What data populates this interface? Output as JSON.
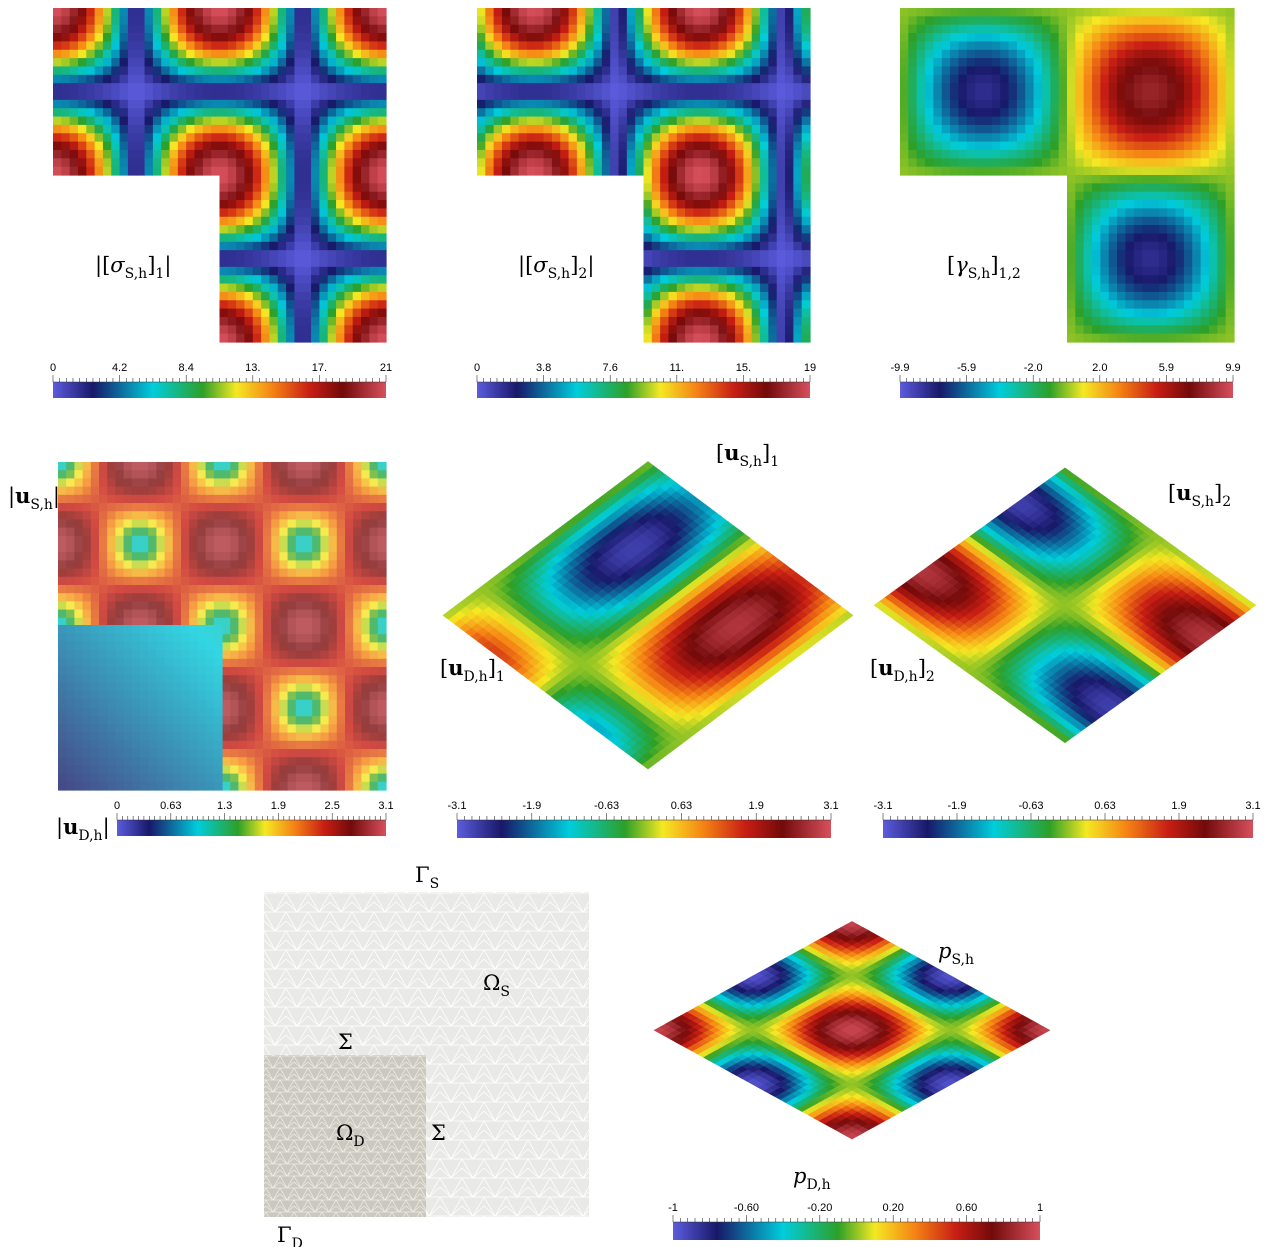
{
  "panels": [
    {
      "labels": [
        [
          {
            "text": "|[",
            "italic": "σ"
          },
          {
            "sub": "S,h"
          },
          {
            "text": "]"
          },
          {
            "sub": "1"
          },
          {
            "text": "|"
          }
        ]
      ],
      "colorbar": {
        "ticks": [
          "0",
          "4.2",
          "8.4",
          "13.",
          "17.",
          "21"
        ]
      }
    },
    {
      "labels": [
        [
          {
            "text": "|[",
            "italic": "σ"
          },
          {
            "sub": "S,h"
          },
          {
            "text": "]"
          },
          {
            "sub": "2"
          },
          {
            "text": "|"
          }
        ]
      ],
      "colorbar": {
        "ticks": [
          "0",
          "3.8",
          "7.6",
          "11.",
          "15.",
          "19"
        ]
      }
    },
    {
      "labels": [
        [
          {
            "text": "[",
            "italic": "γ"
          },
          {
            "sub": "S,h"
          },
          {
            "text": "]"
          },
          {
            "sub": "1,2"
          }
        ]
      ],
      "colorbar": {
        "ticks": [
          "-9.9",
          "-5.9",
          "-2.0",
          "2.0",
          "5.9",
          "9.9"
        ]
      }
    },
    {
      "labels": [
        [
          {
            "text": "|",
            "bold": "u"
          },
          {
            "sub": "S,h"
          },
          {
            "text": "|"
          }
        ],
        [
          {
            "text": "|",
            "bold": "u"
          },
          {
            "sub": "D,h"
          },
          {
            "text": "|"
          }
        ]
      ],
      "colorbar": {
        "ticks": [
          "0",
          "0.63",
          "1.3",
          "1.9",
          "2.5",
          "3.1"
        ]
      }
    },
    {
      "labels": [
        [
          {
            "text": "[",
            "bold": "u"
          },
          {
            "sub": "S,h"
          },
          {
            "text": "]"
          },
          {
            "sub": "1"
          }
        ],
        [
          {
            "text": "[",
            "bold": "u"
          },
          {
            "sub": "D,h"
          },
          {
            "text": "]"
          },
          {
            "sub": "1"
          }
        ]
      ],
      "colorbar": {
        "ticks": [
          "-3.1",
          "-1.9",
          "-0.63",
          "0.63",
          "1.9",
          "3.1"
        ]
      }
    },
    {
      "labels": [
        [
          {
            "text": "[",
            "bold": "u"
          },
          {
            "sub": "S,h"
          },
          {
            "text": "]"
          },
          {
            "sub": "2"
          }
        ],
        [
          {
            "text": "[",
            "bold": "u"
          },
          {
            "sub": "D,h"
          },
          {
            "text": "]"
          },
          {
            "sub": "2"
          }
        ]
      ],
      "colorbar": {
        "ticks": [
          "-3.1",
          "-1.9",
          "-0.63",
          "0.63",
          "1.9",
          "3.1"
        ]
      }
    },
    {
      "labels": [
        [
          {
            "italic": "p"
          },
          {
            "sub": "S,h"
          }
        ],
        [
          {
            "italic": "p"
          },
          {
            "sub": "D,h"
          }
        ]
      ],
      "colorbar": {
        "ticks": [
          "-1",
          "-0.60",
          "-0.20",
          "0.20",
          "0.60",
          "1"
        ]
      }
    }
  ],
  "mesh": {
    "labels": [
      [
        {
          "text": "Γ"
        },
        {
          "sub": "S"
        }
      ],
      [
        {
          "text": "Ω"
        },
        {
          "sub": "S"
        }
      ],
      [
        {
          "text": "Σ"
        }
      ],
      [
        {
          "text": "Ω"
        },
        {
          "sub": "D"
        }
      ],
      [
        {
          "text": "Σ"
        }
      ],
      [
        {
          "text": "Γ"
        },
        {
          "sub": "D"
        }
      ]
    ]
  }
}
